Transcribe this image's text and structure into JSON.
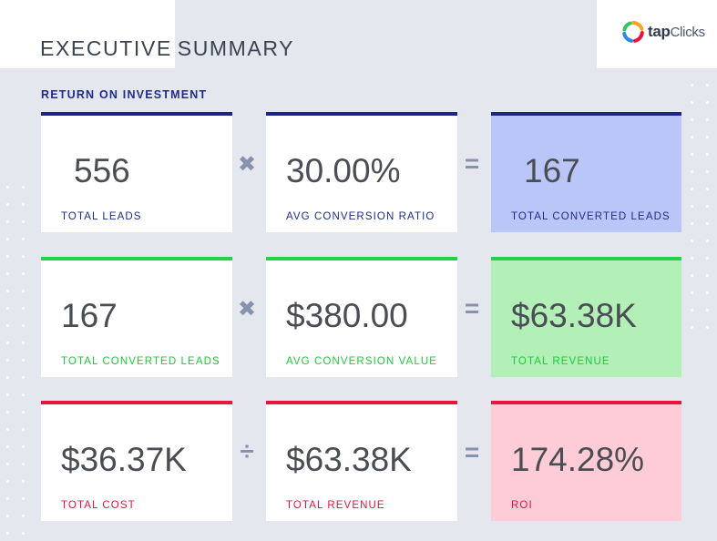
{
  "header": {
    "title_word1": "EXECUTIVE",
    "title_word2": "SUMMARY",
    "logo_text_bold": "tap",
    "logo_text_rest": "Clicks"
  },
  "section": {
    "title": "RETURN ON INVESTMENT"
  },
  "rows": [
    {
      "accent": "#1f2582",
      "op1": "✖",
      "op2": "=",
      "cards": [
        {
          "value": "556",
          "label": "TOTAL LEADS"
        },
        {
          "value": "30.00%",
          "label": "AVG CONVERSION RATIO"
        },
        {
          "value": "167",
          "label": "TOTAL CONVERTED LEADS"
        }
      ]
    },
    {
      "accent": "#22d34a",
      "op1": "✖",
      "op2": "=",
      "cards": [
        {
          "value": "167",
          "label": "TOTAL CONVERTED LEADS"
        },
        {
          "value": "$380.00",
          "label": "AVG CONVERSION VALUE"
        },
        {
          "value": "$63.38K",
          "label": "TOTAL REVENUE"
        }
      ]
    },
    {
      "accent": "#e8163c",
      "op1": "÷",
      "op2": "=",
      "cards": [
        {
          "value": "$36.37K",
          "label": "TOTAL COST"
        },
        {
          "value": "$63.38K",
          "label": "TOTAL REVENUE"
        },
        {
          "value": "174.28%",
          "label": "ROI"
        }
      ]
    }
  ],
  "colors": {
    "background": "#e4e7ee",
    "row1_accent": "#1f2582",
    "row1_result_bg": "#bbc6f8",
    "row2_accent": "#22d34a",
    "row2_result_bg": "#b2f0b8",
    "row3_accent": "#e8163c",
    "row3_result_bg": "#fdccd6",
    "operator": "#8792ad"
  },
  "icons": {
    "logo": "tapclicks-logo-icon"
  }
}
